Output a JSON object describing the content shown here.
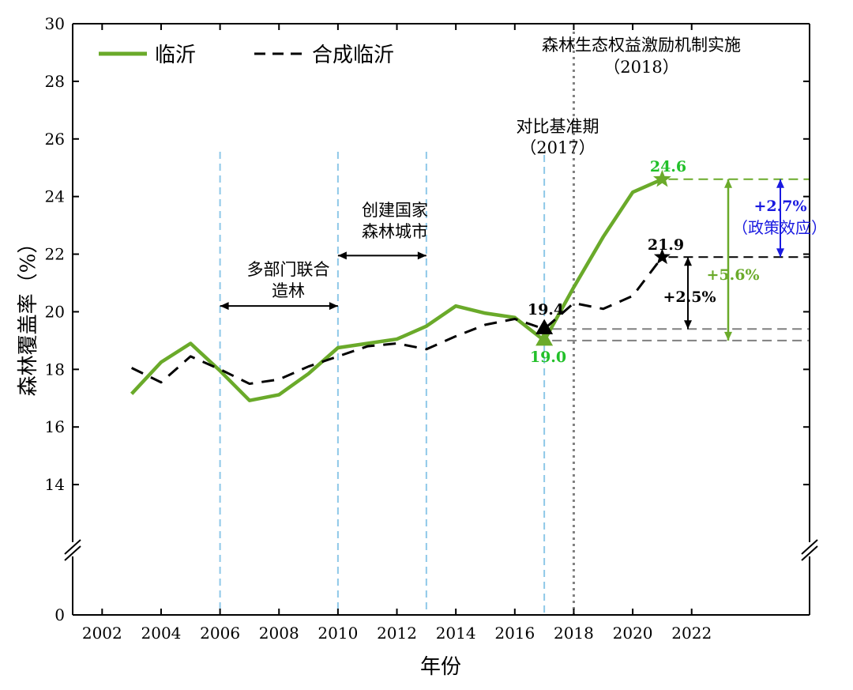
{
  "chart_data": {
    "type": "line",
    "xlabel": "年份",
    "ylabel": "森林覆盖率（%）",
    "xlim": [
      2001,
      2026
    ],
    "xticks": [
      2002,
      2004,
      2006,
      2008,
      2010,
      2012,
      2014,
      2016,
      2018,
      2020,
      2022
    ],
    "xtick_labels": [
      "2002",
      "2004",
      "2006",
      "2008",
      "2010",
      "2012",
      "2014",
      "2016",
      "2018",
      "2020",
      "2022"
    ],
    "ylim": [
      12,
      30
    ],
    "y_axis_break": true,
    "yticks": [
      14,
      16,
      18,
      20,
      22,
      24,
      26,
      28,
      30
    ],
    "ytick_labels": [
      "14",
      "16",
      "18",
      "20",
      "22",
      "24",
      "26",
      "28",
      "30"
    ],
    "y_zero_label": "0",
    "series": [
      {
        "name": "临沂",
        "color": "#6aaa2a",
        "style": "solid",
        "x": [
          2003,
          2004,
          2005,
          2006,
          2007,
          2008,
          2009,
          2010,
          2011,
          2012,
          2013,
          2014,
          2015,
          2016,
          2017,
          2018,
          2019,
          2020,
          2021
        ],
        "values": [
          17.15,
          18.25,
          18.9,
          17.95,
          16.92,
          17.12,
          17.85,
          18.75,
          18.9,
          19.05,
          19.5,
          20.2,
          19.95,
          19.8,
          19.0,
          20.85,
          22.6,
          24.15,
          24.6
        ]
      },
      {
        "name": "合成临沂",
        "color": "#000000",
        "style": "dashed",
        "x": [
          2003,
          2004,
          2005,
          2006,
          2007,
          2008,
          2009,
          2010,
          2011,
          2012,
          2013,
          2014,
          2015,
          2016,
          2017,
          2018,
          2019,
          2020,
          2021
        ],
        "values": [
          18.05,
          17.55,
          18.45,
          18.0,
          17.5,
          17.65,
          18.1,
          18.45,
          18.8,
          18.9,
          18.7,
          19.15,
          19.55,
          19.75,
          19.4,
          20.3,
          20.1,
          20.55,
          21.9
        ]
      }
    ],
    "vlines": [
      {
        "x": 2006,
        "color": "#8ec8e8"
      },
      {
        "x": 2010,
        "color": "#8ec8e8"
      },
      {
        "x": 2013,
        "color": "#8ec8e8"
      },
      {
        "x": 2017,
        "color": "#8ec8e8"
      },
      {
        "x": 2018,
        "color": "#808080"
      }
    ],
    "annotations": {
      "policy_title": "森林生态权益激励机制实施",
      "policy_year": "（2018）",
      "baseline_title": "对比基准期",
      "baseline_year": "（2017）",
      "period1_line1": "多部门联合",
      "period1_line2": "造林",
      "period2_line1": "创建国家",
      "period2_line2": "森林城市",
      "actual_2017": "19.0",
      "synthetic_2017": "19.4",
      "actual_2021": "24.6",
      "synthetic_2021": "21.9",
      "actual_change": "+5.6%",
      "synthetic_change": "+2.5%",
      "policy_effect": "+2.7%",
      "policy_effect_label": "（政策效应）"
    },
    "colors": {
      "actual": "#6aaa2a",
      "synthetic": "#000000",
      "actual_label": "#22c02a",
      "effect": "#1a1ae0",
      "reference": "#808080",
      "period": "#8ec8e8"
    }
  }
}
